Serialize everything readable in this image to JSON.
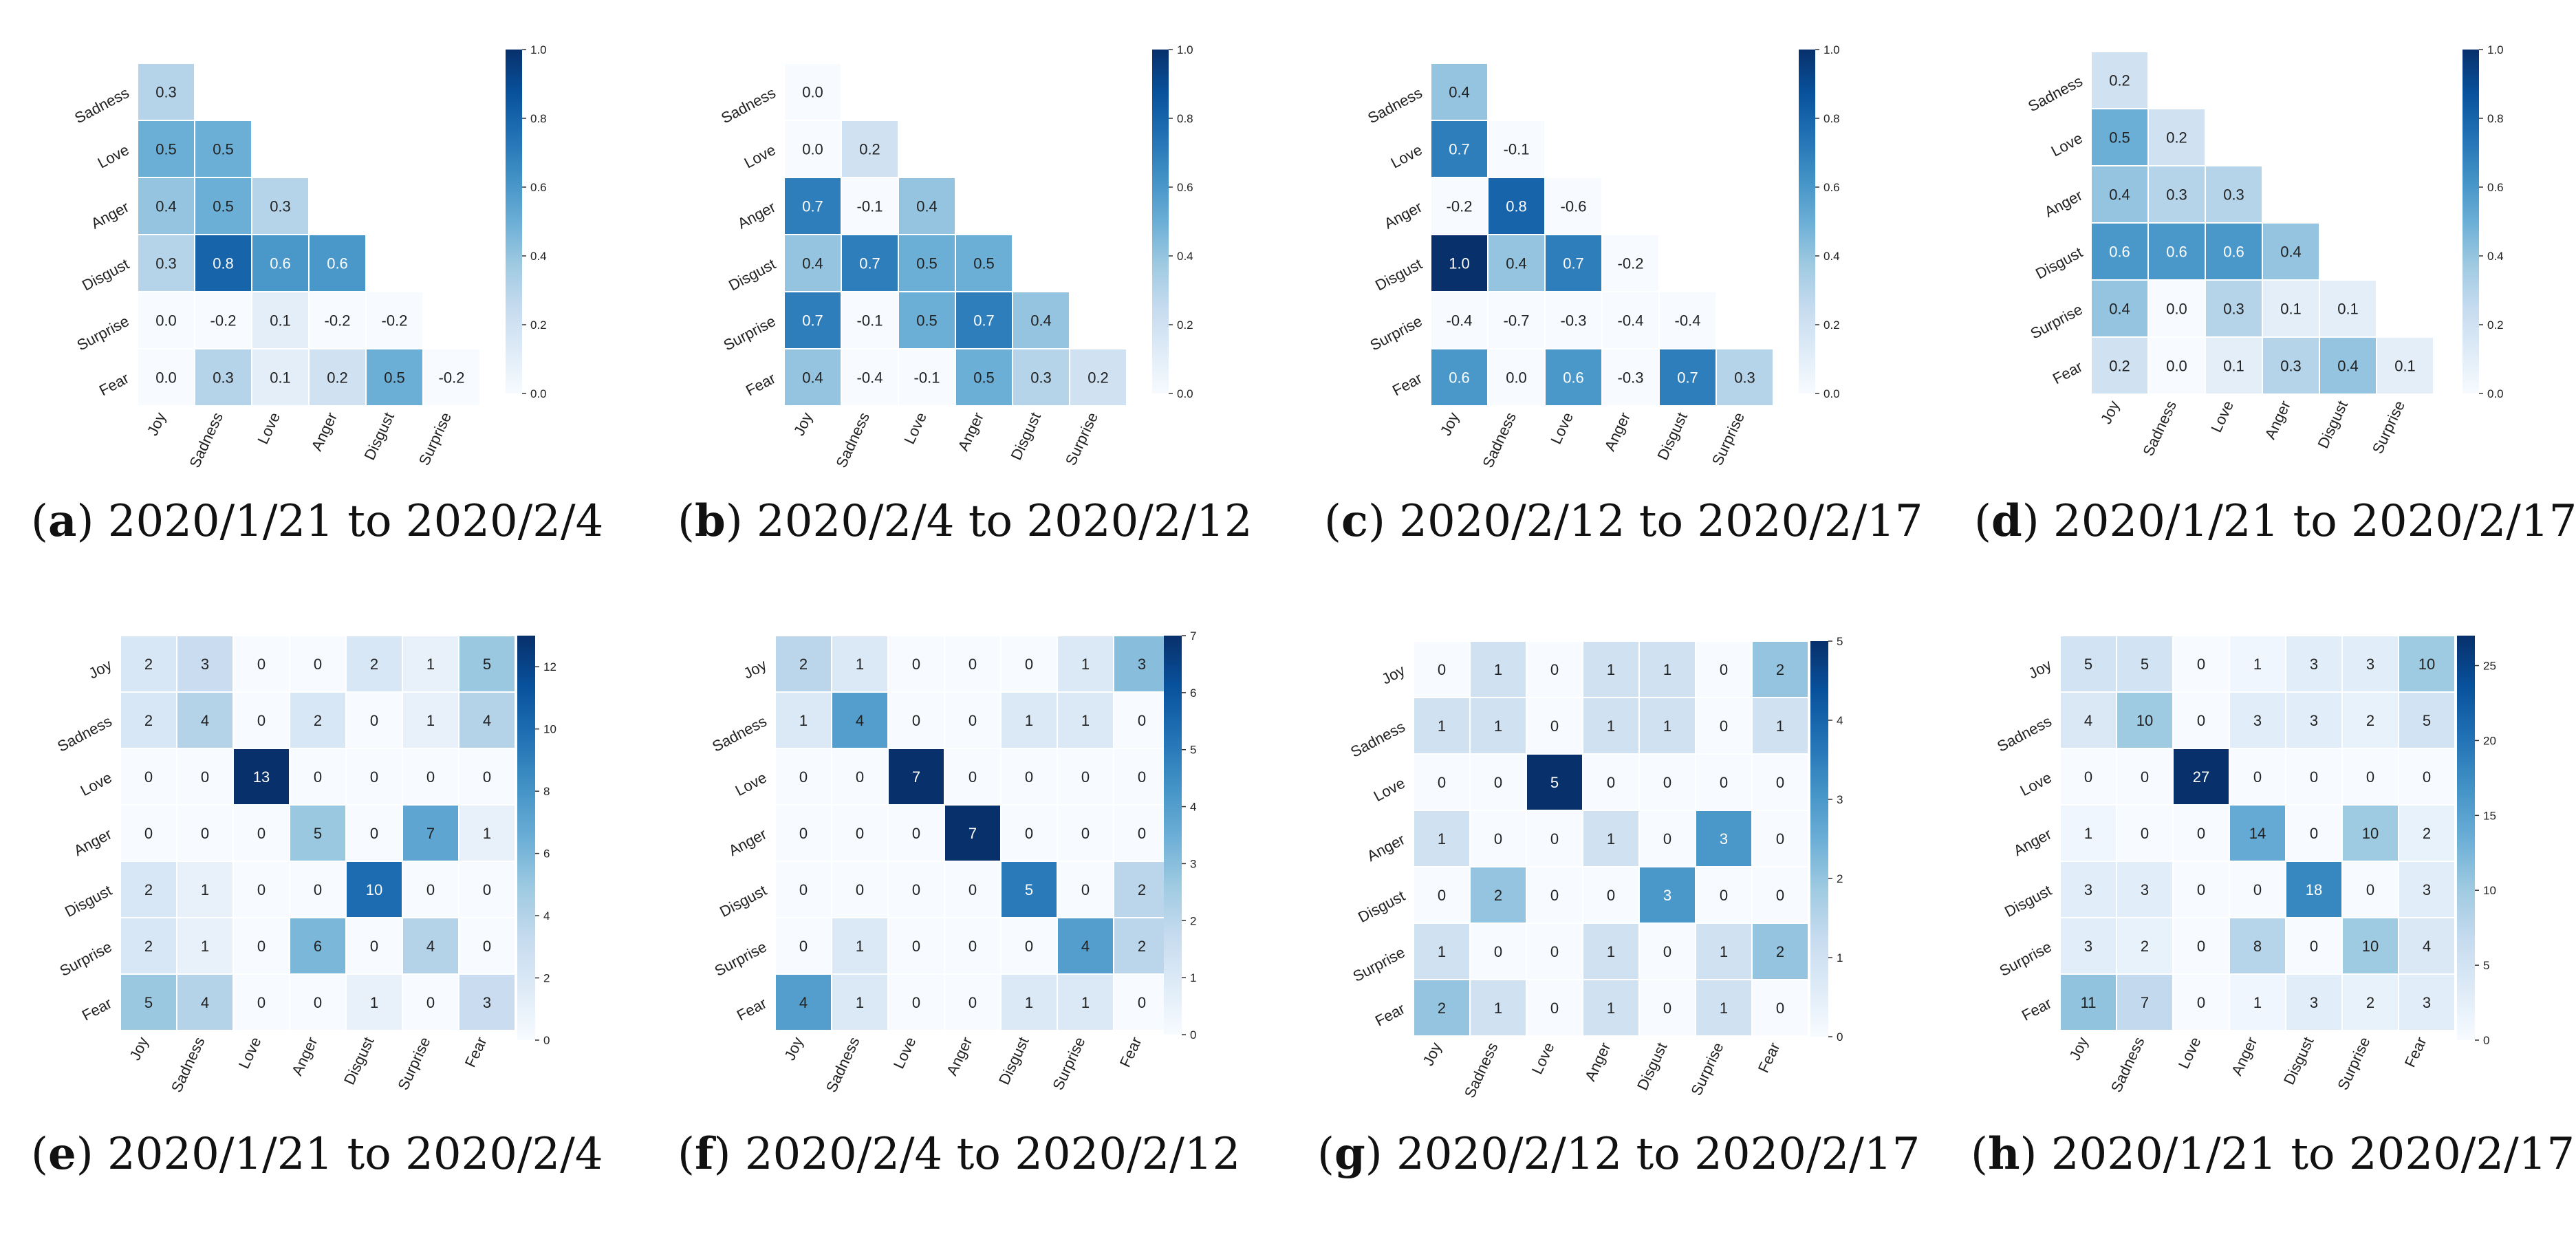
{
  "chart_data": [
    {
      "id": "a",
      "type": "heatmap",
      "variant": "lower-triangle-correlation",
      "caption_letter": "a",
      "caption_text": "2020/1/21 to 2020/2/4",
      "rows": [
        "Sadness",
        "Love",
        "Anger",
        "Disgust",
        "Surprise",
        "Fear"
      ],
      "cols": [
        "Joy",
        "Sadness",
        "Love",
        "Anger",
        "Disgust",
        "Surprise"
      ],
      "values": [
        [
          0.3
        ],
        [
          0.5,
          0.5
        ],
        [
          0.4,
          0.5,
          0.3
        ],
        [
          0.3,
          0.8,
          0.6,
          0.6
        ],
        [
          0.0,
          -0.2,
          0.1,
          -0.2,
          -0.2
        ],
        [
          0.0,
          0.3,
          0.1,
          0.2,
          0.5,
          -0.2
        ]
      ],
      "value_labels": [
        [
          "0.3"
        ],
        [
          "0.5",
          "0.5"
        ],
        [
          "0.4",
          "0.5",
          "0.3"
        ],
        [
          "0.3",
          "0.8",
          "0.6",
          "0.6"
        ],
        [
          "0.0",
          "-0.2",
          "0.1",
          "-0.2",
          "-0.2"
        ],
        [
          "0.0",
          "0.3",
          "0.1",
          "0.2",
          "0.5",
          "-0.2"
        ]
      ],
      "colorbar": {
        "min": 0.0,
        "max": 1.0,
        "ticks": [
          "0.0",
          "0.2",
          "0.4",
          "0.6",
          "0.8",
          "1.0"
        ]
      }
    },
    {
      "id": "b",
      "type": "heatmap",
      "variant": "lower-triangle-correlation",
      "caption_letter": "b",
      "caption_text": "2020/2/4 to 2020/2/12",
      "rows": [
        "Sadness",
        "Love",
        "Anger",
        "Disgust",
        "Surprise",
        "Fear"
      ],
      "cols": [
        "Joy",
        "Sadness",
        "Love",
        "Anger",
        "Disgust",
        "Surprise"
      ],
      "values": [
        [
          0.0
        ],
        [
          0.0,
          0.2
        ],
        [
          0.7,
          -0.1,
          0.4
        ],
        [
          0.4,
          0.7,
          0.5,
          0.5
        ],
        [
          0.7,
          -0.1,
          0.5,
          0.7,
          0.4
        ],
        [
          0.4,
          -0.4,
          -0.1,
          0.5,
          0.3,
          0.2
        ]
      ],
      "value_labels": [
        [
          "0.0"
        ],
        [
          "0.0",
          "0.2"
        ],
        [
          "0.7",
          "-0.1",
          "0.4"
        ],
        [
          "0.4",
          "0.7",
          "0.5",
          "0.5"
        ],
        [
          "0.7",
          "-0.1",
          "0.5",
          "0.7",
          "0.4"
        ],
        [
          "0.4",
          "-0.4",
          "-0.1",
          "0.5",
          "0.3",
          "0.2"
        ]
      ],
      "colorbar": {
        "min": 0.0,
        "max": 1.0,
        "ticks": [
          "0.0",
          "0.2",
          "0.4",
          "0.6",
          "0.8",
          "1.0"
        ]
      }
    },
    {
      "id": "c",
      "type": "heatmap",
      "variant": "lower-triangle-correlation",
      "caption_letter": "c",
      "caption_text": "2020/2/12 to 2020/2/17",
      "rows": [
        "Sadness",
        "Love",
        "Anger",
        "Disgust",
        "Surprise",
        "Fear"
      ],
      "cols": [
        "Joy",
        "Sadness",
        "Love",
        "Anger",
        "Disgust",
        "Surprise"
      ],
      "values": [
        [
          0.4
        ],
        [
          0.7,
          -0.1
        ],
        [
          -0.2,
          0.8,
          -0.6
        ],
        [
          1.0,
          0.4,
          0.7,
          -0.2
        ],
        [
          -0.4,
          -0.7,
          -0.3,
          -0.4,
          -0.4
        ],
        [
          0.6,
          0.0,
          0.6,
          -0.3,
          0.7,
          0.3
        ]
      ],
      "value_labels": [
        [
          "0.4"
        ],
        [
          "0.7",
          "-0.1"
        ],
        [
          "-0.2",
          "0.8",
          "-0.6"
        ],
        [
          "1.0",
          "0.4",
          "0.7",
          "-0.2"
        ],
        [
          "-0.4",
          "-0.7",
          "-0.3",
          "-0.4",
          "-0.4"
        ],
        [
          "0.6",
          "0.0",
          "0.6",
          "-0.3",
          "0.7",
          "0.3"
        ]
      ],
      "colorbar": {
        "min": 0.0,
        "max": 1.0,
        "ticks": [
          "0.0",
          "0.2",
          "0.4",
          "0.6",
          "0.8",
          "1.0"
        ]
      }
    },
    {
      "id": "d",
      "type": "heatmap",
      "variant": "lower-triangle-correlation",
      "caption_letter": "d",
      "caption_text": "2020/1/21 to 2020/2/17",
      "rows": [
        "Sadness",
        "Love",
        "Anger",
        "Disgust",
        "Surprise",
        "Fear"
      ],
      "cols": [
        "Joy",
        "Sadness",
        "Love",
        "Anger",
        "Disgust",
        "Surprise"
      ],
      "values": [
        [
          0.2
        ],
        [
          0.5,
          0.2
        ],
        [
          0.4,
          0.3,
          0.3
        ],
        [
          0.6,
          0.6,
          0.6,
          0.4
        ],
        [
          0.4,
          0.0,
          0.3,
          0.1,
          0.1
        ],
        [
          0.2,
          0.0,
          0.1,
          0.3,
          0.4,
          0.1
        ]
      ],
      "value_labels": [
        [
          "0.2"
        ],
        [
          "0.5",
          "0.2"
        ],
        [
          "0.4",
          "0.3",
          "0.3"
        ],
        [
          "0.6",
          "0.6",
          "0.6",
          "0.4"
        ],
        [
          "0.4",
          "0.0",
          "0.3",
          "0.1",
          "0.1"
        ],
        [
          "0.2",
          "0.0",
          "0.1",
          "0.3",
          "0.4",
          "0.1"
        ]
      ],
      "colorbar": {
        "min": 0.0,
        "max": 1.0,
        "ticks": [
          "0.0",
          "0.2",
          "0.4",
          "0.6",
          "0.8",
          "1.0"
        ]
      }
    },
    {
      "id": "e",
      "type": "heatmap",
      "variant": "full-count",
      "caption_letter": "e",
      "caption_text": "2020/1/21 to 2020/2/4",
      "rows": [
        "Joy",
        "Sadness",
        "Love",
        "Anger",
        "Disgust",
        "Surprise",
        "Fear"
      ],
      "cols": [
        "Joy",
        "Sadness",
        "Love",
        "Anger",
        "Disgust",
        "Surprise",
        "Fear"
      ],
      "values": [
        [
          2,
          3,
          0,
          0,
          2,
          1,
          5
        ],
        [
          2,
          4,
          0,
          2,
          0,
          1,
          4
        ],
        [
          0,
          0,
          13,
          0,
          0,
          0,
          0
        ],
        [
          0,
          0,
          0,
          5,
          0,
          7,
          1
        ],
        [
          2,
          1,
          0,
          0,
          10,
          0,
          0
        ],
        [
          2,
          1,
          0,
          6,
          0,
          4,
          0
        ],
        [
          5,
          4,
          0,
          0,
          1,
          0,
          3
        ]
      ],
      "colorbar": {
        "min": 0,
        "max": 13,
        "ticks": [
          "0",
          "2",
          "4",
          "6",
          "8",
          "10",
          "12"
        ]
      }
    },
    {
      "id": "f",
      "type": "heatmap",
      "variant": "full-count",
      "caption_letter": "f",
      "caption_text": "2020/2/4 to 2020/2/12",
      "rows": [
        "Joy",
        "Sadness",
        "Love",
        "Anger",
        "Disgust",
        "Surprise",
        "Fear"
      ],
      "cols": [
        "Joy",
        "Sadness",
        "Love",
        "Anger",
        "Disgust",
        "Surprise",
        "Fear"
      ],
      "values": [
        [
          2,
          1,
          0,
          0,
          0,
          1,
          3
        ],
        [
          1,
          4,
          0,
          0,
          1,
          1,
          0
        ],
        [
          0,
          0,
          7,
          0,
          0,
          0,
          0
        ],
        [
          0,
          0,
          0,
          7,
          0,
          0,
          0
        ],
        [
          0,
          0,
          0,
          0,
          5,
          0,
          2
        ],
        [
          0,
          1,
          0,
          0,
          0,
          4,
          2
        ],
        [
          4,
          1,
          0,
          0,
          1,
          1,
          0
        ]
      ],
      "colorbar": {
        "min": 0,
        "max": 7,
        "ticks": [
          "0",
          "1",
          "2",
          "3",
          "4",
          "5",
          "6",
          "7"
        ]
      }
    },
    {
      "id": "g",
      "type": "heatmap",
      "variant": "full-count",
      "caption_letter": "g",
      "caption_text": "2020/2/12 to 2020/2/17",
      "rows": [
        "Joy",
        "Sadness",
        "Love",
        "Anger",
        "Disgust",
        "Surprise",
        "Fear"
      ],
      "cols": [
        "Joy",
        "Sadness",
        "Love",
        "Anger",
        "Disgust",
        "Surprise",
        "Fear"
      ],
      "values": [
        [
          0,
          1,
          0,
          1,
          1,
          0,
          2
        ],
        [
          1,
          1,
          0,
          1,
          1,
          0,
          1
        ],
        [
          0,
          0,
          5,
          0,
          0,
          0,
          0
        ],
        [
          1,
          0,
          0,
          1,
          0,
          3,
          0
        ],
        [
          0,
          2,
          0,
          0,
          3,
          0,
          0
        ],
        [
          1,
          0,
          0,
          1,
          0,
          1,
          2
        ],
        [
          2,
          1,
          0,
          1,
          0,
          1,
          0
        ]
      ],
      "colorbar": {
        "min": 0,
        "max": 5,
        "ticks": [
          "0",
          "1",
          "2",
          "3",
          "4",
          "5"
        ]
      }
    },
    {
      "id": "h",
      "type": "heatmap",
      "variant": "full-count",
      "caption_letter": "h",
      "caption_text": "2020/1/21 to 2020/2/17",
      "rows": [
        "Joy",
        "Sadness",
        "Love",
        "Anger",
        "Disgust",
        "Surprise",
        "Fear"
      ],
      "cols": [
        "Joy",
        "Sadness",
        "Love",
        "Anger",
        "Disgust",
        "Surprise",
        "Fear"
      ],
      "values": [
        [
          5,
          5,
          0,
          1,
          3,
          3,
          10
        ],
        [
          4,
          10,
          0,
          3,
          3,
          2,
          5
        ],
        [
          0,
          0,
          27,
          0,
          0,
          0,
          0
        ],
        [
          1,
          0,
          0,
          14,
          0,
          10,
          2
        ],
        [
          3,
          3,
          0,
          0,
          18,
          0,
          3
        ],
        [
          3,
          2,
          0,
          8,
          0,
          10,
          4
        ],
        [
          11,
          7,
          0,
          1,
          3,
          2,
          3
        ]
      ],
      "colorbar": {
        "min": 0,
        "max": 27,
        "ticks": [
          "0",
          "5",
          "10",
          "15",
          "20",
          "25"
        ]
      }
    }
  ],
  "colors": {
    "colormap": "Blues",
    "cell_border": "#ffffff",
    "text_dark": "#222222",
    "text_light": "#ffffff"
  }
}
